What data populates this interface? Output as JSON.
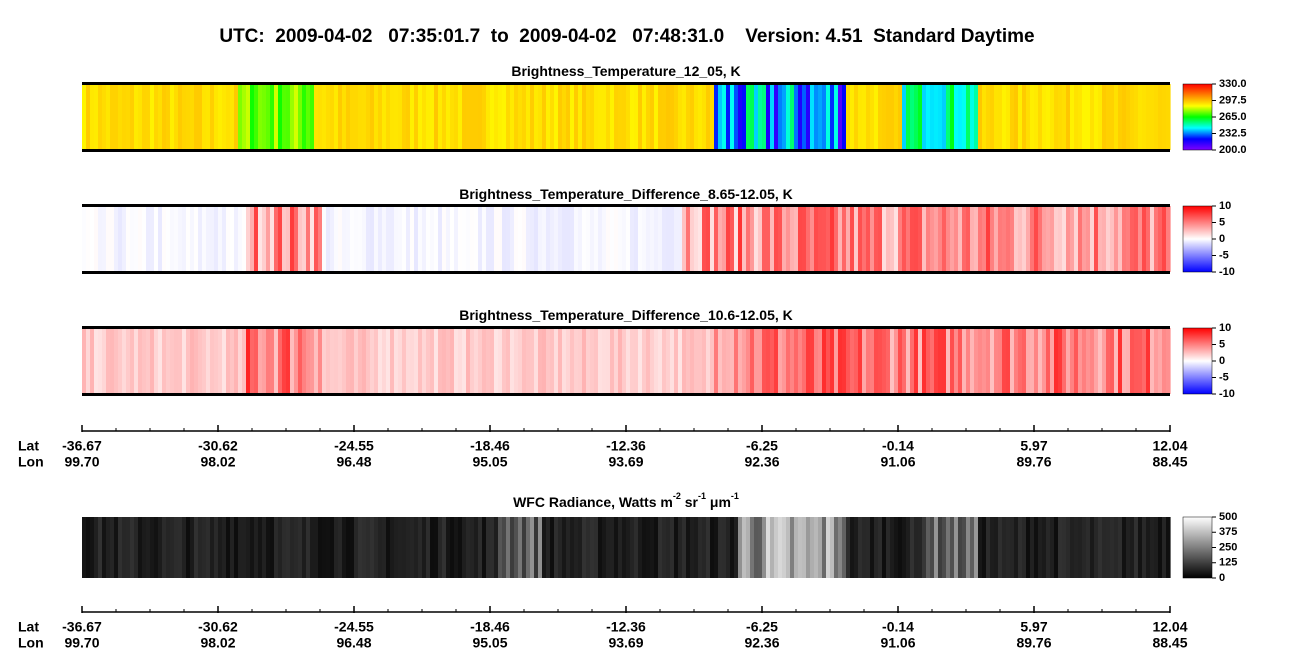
{
  "title": "UTC:  2009-04-02   07:35:01.7  to  2009-04-02   07:48:31.0    Version: 4.51  Standard Daytime",
  "chart_data": [
    {
      "type": "heatmap",
      "title": [
        "Brightness_Temperature_12_05, K"
      ],
      "colors": [
        "#8000ff",
        "#0000ff",
        "#00ffff",
        "#00ff00",
        "#ffff00",
        "#ff8000",
        "#ff0000"
      ],
      "clim": [
        200,
        330
      ],
      "cticks": [
        {
          "value": 330,
          "label": "330.0"
        },
        297.5,
        {
          "value": 265,
          "label": "265.0"
        },
        232.5,
        {
          "value": 200,
          "label": "200.0"
        }
      ]
    },
    {
      "type": "heatmap",
      "title": [
        "Brightness_Temperature_Difference_8.65-12.05, K"
      ],
      "colors": [
        "#0000ff",
        "#ffffff",
        "#ff0000"
      ],
      "clim": [
        -10,
        10
      ],
      "cticks": [
        10,
        5,
        0,
        -5,
        -10
      ]
    },
    {
      "type": "heatmap",
      "title": [
        "Brightness_Temperature_Difference_10.6-12.05, K"
      ],
      "colors": [
        "#0000ff",
        "#ffffff",
        "#ff0000"
      ],
      "clim": [
        -10,
        10
      ],
      "cticks": [
        10,
        5,
        0,
        -5,
        -10
      ]
    },
    {
      "type": "heatmap",
      "title": [
        "WFC Radiance, Watts m",
        "-2",
        " sr",
        "-1",
        " μm",
        "-1"
      ],
      "colors": [
        "#000000",
        "#ffffff"
      ],
      "clim": [
        0,
        500
      ],
      "cticks": [
        500,
        375,
        250,
        125,
        0
      ]
    }
  ],
  "axis": {
    "lat_label": "Lat",
    "lon_label": "Lon",
    "lat": [
      -36.67,
      -30.62,
      -24.55,
      -18.46,
      -12.36,
      -6.25,
      -0.14,
      5.97,
      12.04
    ],
    "lon": [
      {
        "value": 99.7,
        "label": "99.70"
      },
      98.02,
      96.48,
      95.05,
      93.69,
      92.36,
      91.06,
      89.76,
      88.45
    ]
  }
}
